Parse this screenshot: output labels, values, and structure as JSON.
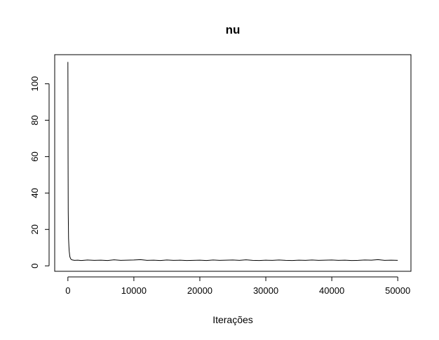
{
  "chart_data": {
    "type": "line",
    "title": "nu",
    "xlabel": "Iterações",
    "ylabel": "",
    "xlim": [
      -2000,
      52000
    ],
    "ylim": [
      -3,
      116
    ],
    "x_ticks": [
      0,
      10000,
      20000,
      30000,
      40000,
      50000
    ],
    "x_tick_labels": [
      "0",
      "10000",
      "20000",
      "30000",
      "40000",
      "50000"
    ],
    "y_ticks": [
      0,
      20,
      40,
      60,
      80,
      100
    ],
    "y_tick_labels": [
      "0",
      "20",
      "40",
      "60",
      "80",
      "100"
    ],
    "grid": false,
    "legend": "none",
    "line_color": "#000000",
    "series": [
      {
        "x": [
          0,
          10,
          25,
          50,
          100,
          150,
          200,
          300,
          400,
          500,
          700,
          1000,
          1500,
          2000,
          3000,
          4000,
          5000,
          6000,
          7000,
          8000,
          9000,
          10000,
          11000,
          12000,
          13000,
          14000,
          15000,
          16000,
          17000,
          18000,
          19000,
          20000,
          21000,
          22000,
          23000,
          24000,
          25000,
          26000,
          27000,
          28000,
          29000,
          30000,
          31000,
          32000,
          33000,
          34000,
          35000,
          36000,
          37000,
          38000,
          39000,
          40000,
          41000,
          42000,
          43000,
          44000,
          45000,
          46000,
          47000,
          48000,
          49000,
          50000
        ],
        "y": [
          112,
          95,
          60,
          30,
          15,
          11,
          8,
          5,
          4,
          3.5,
          3.2,
          3.0,
          3.1,
          2.9,
          3.2,
          3.0,
          3.1,
          2.9,
          3.3,
          3.0,
          3.1,
          3.2,
          3.4,
          3.0,
          3.1,
          2.9,
          3.2,
          3.0,
          3.1,
          2.9,
          3.0,
          3.1,
          2.9,
          3.2,
          3.0,
          3.1,
          3.2,
          3.0,
          3.3,
          3.0,
          2.9,
          3.1,
          3.0,
          3.2,
          3.0,
          2.9,
          3.1,
          3.0,
          3.2,
          3.0,
          3.1,
          3.2,
          3.0,
          3.1,
          2.9,
          3.0,
          3.2,
          3.1,
          3.4,
          3.0,
          3.1,
          3.0
        ]
      }
    ]
  }
}
